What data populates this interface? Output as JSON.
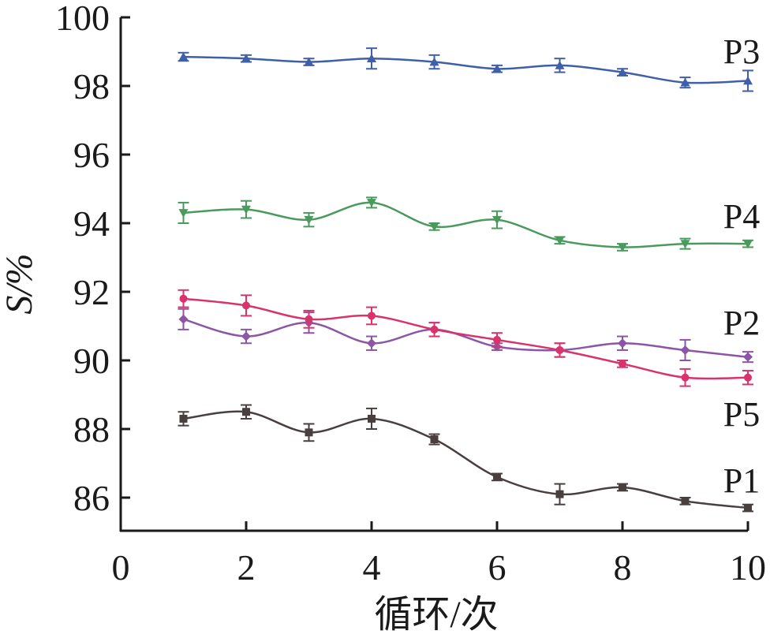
{
  "chart_data": {
    "type": "line",
    "xlabel": "循环/次",
    "ylabel": "S/%",
    "xlim": [
      0,
      10
    ],
    "ylim": [
      85,
      100
    ],
    "xticks": [
      "0",
      "2",
      "4",
      "6",
      "8",
      "10"
    ],
    "yticks": [
      "86",
      "88",
      "90",
      "92",
      "94",
      "96",
      "98",
      "100"
    ],
    "grid": false,
    "legend": "series labels at right end of lines",
    "x": [
      1,
      2,
      3,
      4,
      5,
      6,
      7,
      8,
      9,
      10
    ],
    "series": [
      {
        "name": "P3",
        "color": "#3f5fa8",
        "marker": "triangle-up",
        "values": [
          98.85,
          98.8,
          98.7,
          98.8,
          98.7,
          98.5,
          98.6,
          98.4,
          98.1,
          98.15
        ],
        "errors": [
          0.12,
          0.1,
          0.1,
          0.3,
          0.2,
          0.1,
          0.2,
          0.1,
          0.15,
          0.3
        ]
      },
      {
        "name": "P4",
        "color": "#4a9a5e",
        "marker": "triangle-down",
        "values": [
          94.3,
          94.4,
          94.1,
          94.6,
          93.9,
          94.1,
          93.5,
          93.3,
          93.4,
          93.4
        ],
        "errors": [
          0.3,
          0.25,
          0.2,
          0.15,
          0.1,
          0.25,
          0.1,
          0.1,
          0.15,
          0.1
        ]
      },
      {
        "name": "P2",
        "color": "#8c55a6",
        "marker": "diamond",
        "values": [
          91.2,
          90.7,
          91.1,
          90.5,
          90.9,
          90.4,
          90.3,
          90.5,
          90.3,
          90.1
        ],
        "errors": [
          0.3,
          0.2,
          0.3,
          0.2,
          0.2,
          0.1,
          0.2,
          0.2,
          0.3,
          0.15
        ]
      },
      {
        "name": "P5",
        "color": "#d8336b",
        "marker": "circle",
        "values": [
          91.8,
          91.6,
          91.2,
          91.3,
          90.9,
          90.6,
          90.3,
          89.9,
          89.5,
          89.5
        ],
        "errors": [
          0.25,
          0.3,
          0.25,
          0.25,
          0.2,
          0.2,
          0.2,
          0.1,
          0.25,
          0.2
        ]
      },
      {
        "name": "P1",
        "color": "#4a3f3f",
        "marker": "square",
        "values": [
          88.3,
          88.5,
          87.9,
          88.3,
          87.7,
          86.6,
          86.1,
          86.3,
          85.9,
          85.7
        ],
        "errors": [
          0.2,
          0.2,
          0.25,
          0.3,
          0.15,
          0.1,
          0.3,
          0.1,
          0.1,
          0.1
        ]
      }
    ],
    "annotations": [
      {
        "text": "P3",
        "series": "P3"
      },
      {
        "text": "P4",
        "series": "P4"
      },
      {
        "text": "P2",
        "series": "P2"
      },
      {
        "text": "P5",
        "series": "P5"
      },
      {
        "text": "P1",
        "series": "P1"
      }
    ]
  }
}
